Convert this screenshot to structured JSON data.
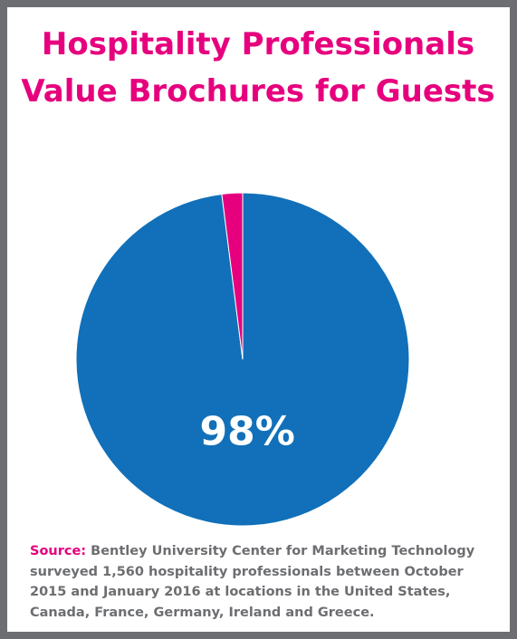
{
  "chart_data": {
    "type": "pie",
    "title": [
      "Hospitality Professionals",
      "Value Brochures for Guests"
    ],
    "values": [
      98,
      2
    ],
    "value_labels": [
      "98%",
      null
    ],
    "colors": [
      "#1170b9",
      "#e6007e"
    ],
    "start": "top",
    "direction": "clockwise"
  },
  "source": {
    "label": "Source:",
    "text": "Bentley University Center for Marketing Technology surveyed 1,560 hospitality professionals between October 2015 and January 2016 at locations in the United States, Canada, France, Germany, Ireland and Greece."
  }
}
